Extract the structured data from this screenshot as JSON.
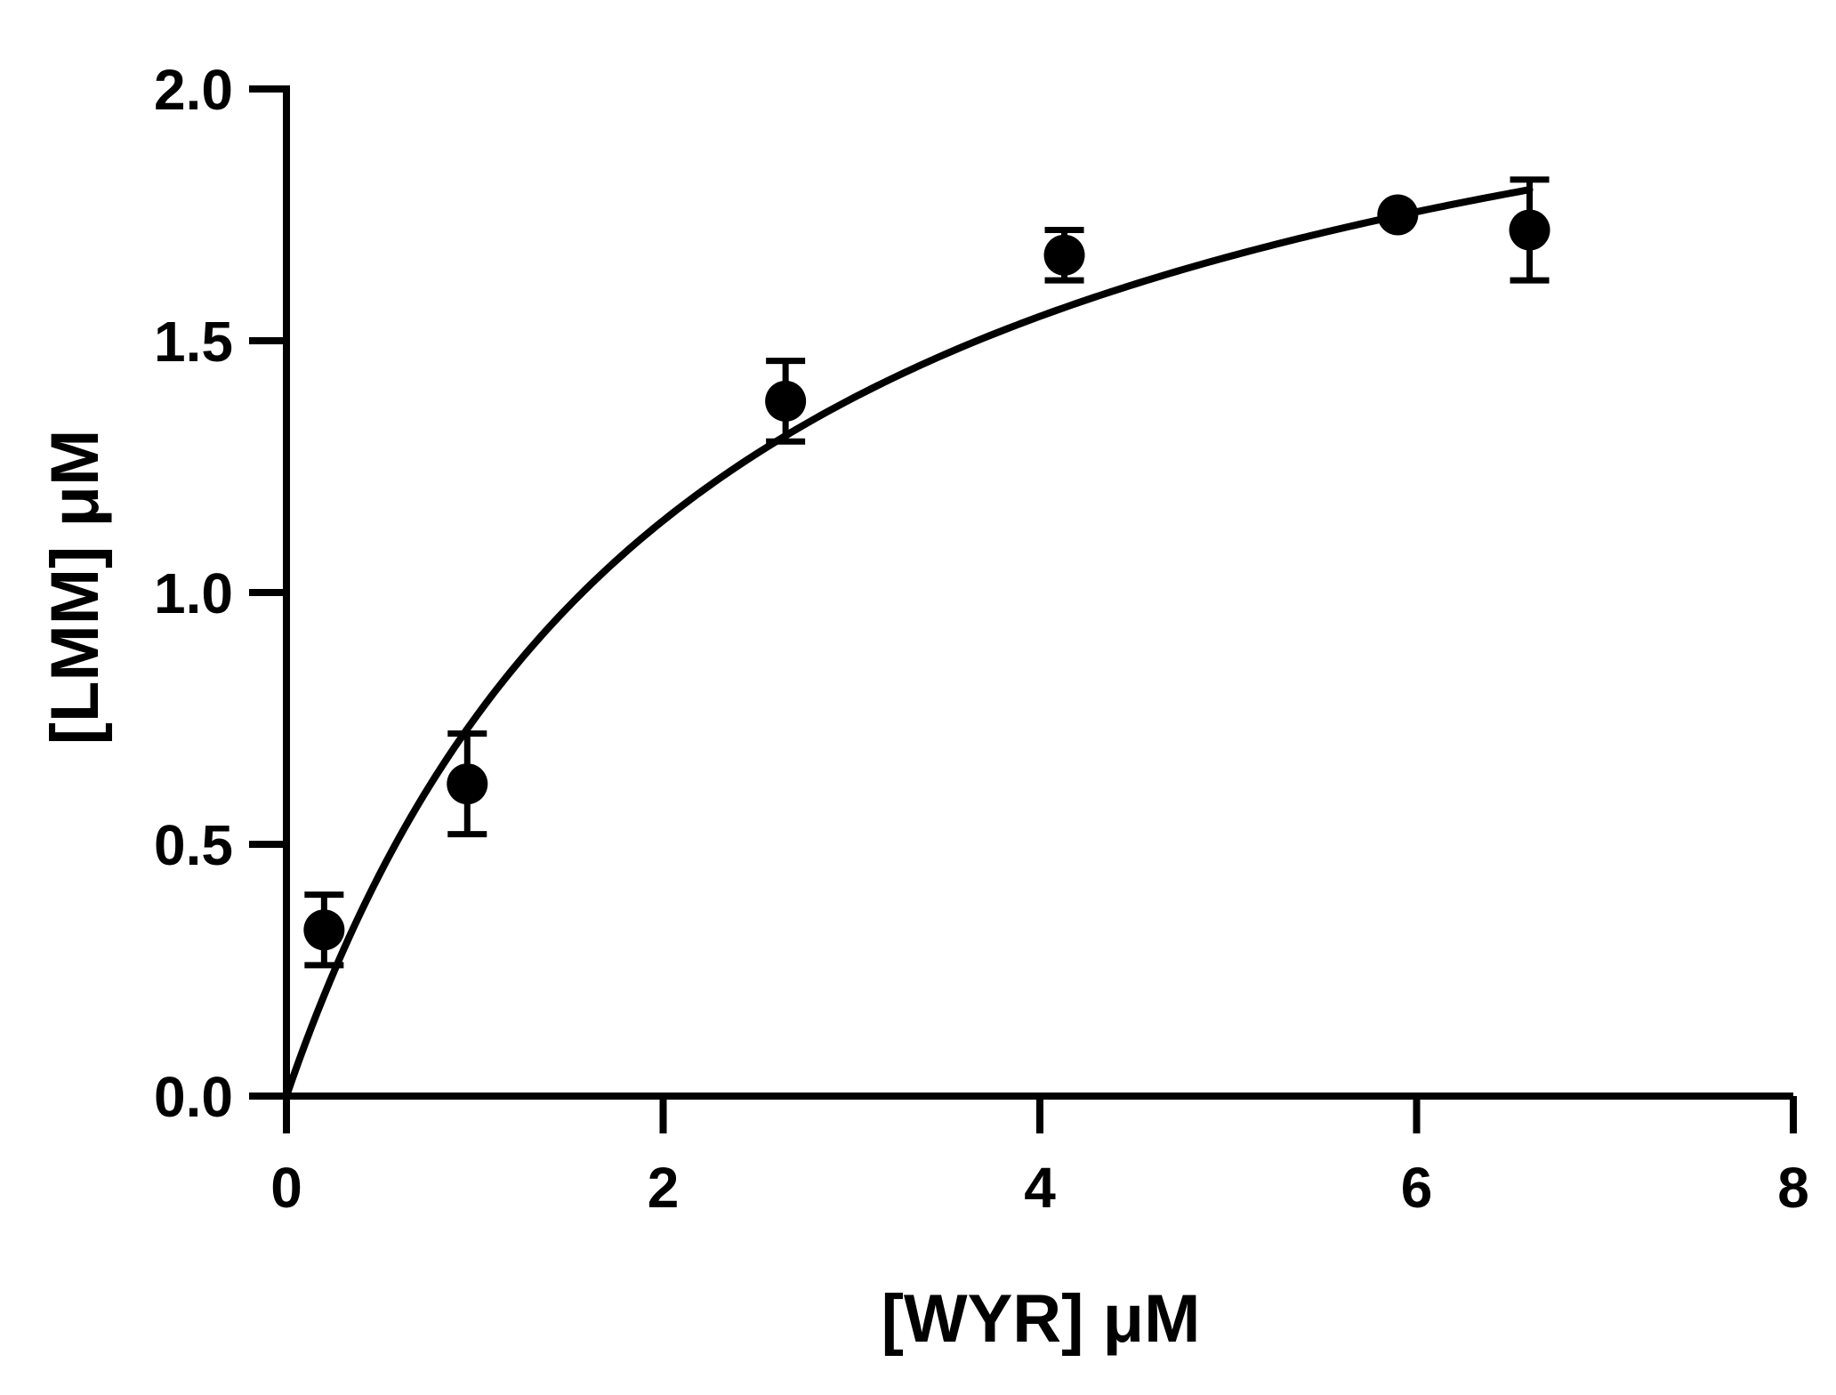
{
  "chart_data": {
    "type": "scatter",
    "xlabel": "[WYR] μM",
    "ylabel": "[LMM] μM",
    "xlim": [
      0,
      8
    ],
    "ylim": [
      0,
      2.0
    ],
    "x_ticks": [
      0,
      2,
      4,
      6,
      8
    ],
    "x_tick_labels": [
      "0",
      "2",
      "4",
      "6",
      "8"
    ],
    "y_ticks": [
      0,
      0.5,
      1.0,
      1.5,
      2.0
    ],
    "y_tick_labels": [
      "0.0",
      "0.5",
      "1.0",
      "1.5",
      "2.0"
    ],
    "grid": false,
    "series": [
      {
        "points": [
          {
            "x": 0.2,
            "y": 0.33,
            "err": 0.07
          },
          {
            "x": 0.96,
            "y": 0.62,
            "err": 0.1
          },
          {
            "x": 2.65,
            "y": 1.38,
            "err": 0.08
          },
          {
            "x": 4.13,
            "y": 1.67,
            "err": 0.05
          },
          {
            "x": 5.9,
            "y": 1.75,
            "err": 0.0
          },
          {
            "x": 6.6,
            "y": 1.72,
            "err": 0.1
          }
        ]
      }
    ],
    "fit": {
      "model": "hyperbolic",
      "Bmax": 2.4,
      "Kd": 2.2,
      "x_range": [
        0,
        6.6
      ]
    },
    "colors": {
      "points": "#000000",
      "line": "#000000",
      "axes": "#000000"
    }
  }
}
